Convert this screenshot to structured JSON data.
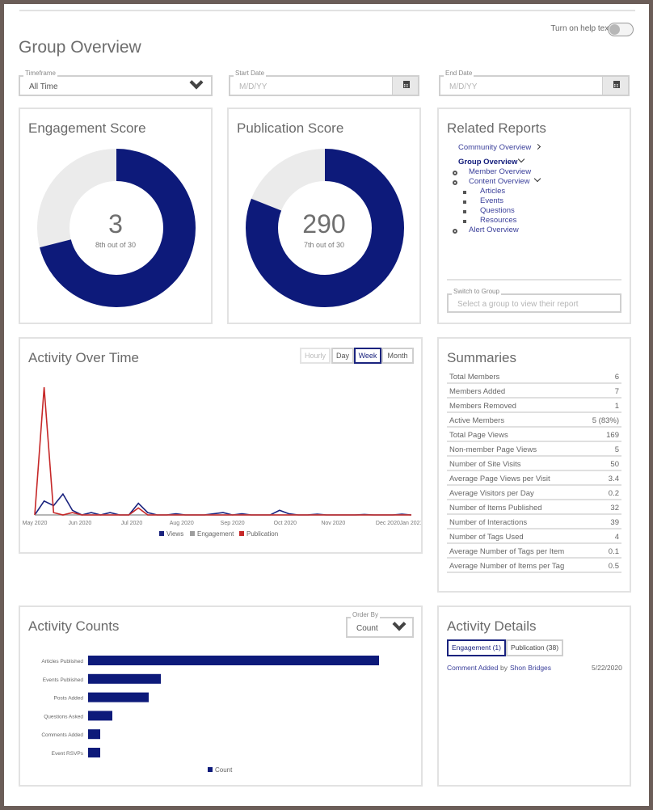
{
  "header": {
    "title": "Group Overview",
    "help_label": "Turn on help text"
  },
  "filters": {
    "timeframe": {
      "label": "Timeframe",
      "value": "All Time"
    },
    "start_date": {
      "label": "Start Date",
      "placeholder": "M/D/YY"
    },
    "end_date": {
      "label": "End Date",
      "placeholder": "M/D/YY"
    }
  },
  "engagement": {
    "title": "Engagement Score",
    "score": "3",
    "rank": "8th out of 30",
    "fill_fraction": 0.71
  },
  "publication": {
    "title": "Publication Score",
    "score": "290",
    "rank": "7th out of 30",
    "fill_fraction": 0.81
  },
  "related": {
    "title": "Related Reports",
    "community": "Community Overview",
    "group": "Group Overview",
    "member": "Member Overview",
    "content": "Content Overview",
    "articles": "Articles",
    "events": "Events",
    "questions": "Questions",
    "resources": "Resources",
    "alert": "Alert Overview",
    "switch_label": "Switch to Group",
    "switch_placeholder": "Select a group to view their report"
  },
  "activity": {
    "title": "Activity Over Time",
    "buttons": {
      "hourly": "Hourly",
      "day": "Day",
      "week": "Week",
      "month": "Month"
    },
    "selected": "Week",
    "legend": {
      "views": "Views",
      "engagement": "Engagement",
      "publication": "Publication"
    }
  },
  "chart_data": [
    {
      "type": "line",
      "x_ticks": [
        "May 2020",
        "Jun 2020",
        "Jul 2020",
        "Aug 2020",
        "Sep 2020",
        "Oct 2020",
        "Nov 2020",
        "Dec 2020",
        "Jan 2021"
      ],
      "x": [
        0,
        1,
        2,
        3,
        4,
        5,
        6,
        7,
        8,
        9,
        10,
        11,
        12,
        13,
        14,
        15,
        16,
        17,
        18,
        19,
        20,
        21,
        22,
        23,
        24,
        25,
        26,
        27,
        28,
        29,
        30,
        31,
        32,
        33,
        34,
        35,
        36,
        37,
        38,
        39,
        40
      ],
      "series": [
        {
          "name": "Views",
          "color": "#1a237e",
          "values": [
            0,
            6,
            4,
            9,
            2,
            0,
            1,
            0,
            1,
            0,
            0,
            5,
            1,
            0,
            0,
            0.5,
            0,
            0,
            0,
            0.5,
            1,
            0,
            0.5,
            0,
            0,
            0,
            2,
            0.5,
            0,
            0,
            0.3,
            0,
            0,
            0,
            0,
            0.2,
            0,
            0,
            0,
            0.3,
            0
          ]
        },
        {
          "name": "Engagement",
          "color": "#9e9e9e",
          "values": [
            0,
            0,
            0,
            0,
            0,
            0,
            0,
            0,
            0,
            0,
            0,
            0,
            0,
            0,
            0,
            0,
            0,
            0,
            0,
            0,
            0,
            0,
            0,
            0,
            0,
            0,
            0,
            0,
            0,
            0,
            0,
            0,
            0,
            0,
            0,
            0,
            0,
            0,
            0,
            0,
            0
          ]
        },
        {
          "name": "Publication",
          "color": "#c62828",
          "values": [
            0,
            55,
            1,
            0,
            1,
            0,
            0,
            0,
            0,
            0,
            0,
            3,
            0,
            0,
            0,
            0,
            0,
            0,
            0,
            0,
            0,
            0,
            0,
            0,
            0,
            0,
            0,
            0,
            0,
            0,
            0,
            0,
            0,
            0,
            0,
            0,
            0,
            0,
            0,
            0,
            0
          ]
        }
      ],
      "ylim": [
        0,
        55
      ]
    },
    {
      "type": "bar",
      "orientation": "horizontal",
      "categories": [
        "Articles Published",
        "Events Published",
        "Posts Added",
        "Questions Asked",
        "Comments Added",
        "Event RSVPs"
      ],
      "series": [
        {
          "name": "Count",
          "color": "#0d1a7a",
          "values": [
            24,
            6,
            5,
            2,
            1,
            1
          ]
        }
      ],
      "xlim": [
        0,
        24
      ]
    }
  ],
  "summaries": {
    "title": "Summaries",
    "rows": [
      {
        "k": "Total Members",
        "v": "6"
      },
      {
        "k": "Members Added",
        "v": "7"
      },
      {
        "k": "Members Removed",
        "v": "1"
      },
      {
        "k": "Active Members",
        "v": "5 (83%)"
      },
      {
        "k": "Total Page Views",
        "v": "169"
      },
      {
        "k": "Non-member Page Views",
        "v": "5"
      },
      {
        "k": "Number of Site Visits",
        "v": "50"
      },
      {
        "k": "Average Page Views per Visit",
        "v": "3.4"
      },
      {
        "k": "Average Visitors per Day",
        "v": "0.2"
      },
      {
        "k": "Number of Items Published",
        "v": "32"
      },
      {
        "k": "Number of Interactions",
        "v": "39"
      },
      {
        "k": "Number of Tags Used",
        "v": "4"
      },
      {
        "k": "Average Number of Tags per Item",
        "v": "0.1"
      },
      {
        "k": "Average Number of Items per Tag",
        "v": "0.5"
      }
    ]
  },
  "counts": {
    "title": "Activity Counts",
    "order_label": "Order By",
    "order_value": "Count"
  },
  "details": {
    "title": "Activity Details",
    "tab_engagement": "Engagement (1)",
    "tab_publication": "Publication (38)",
    "item_action": "Comment Added",
    "item_by": "by",
    "item_user": "Shon Bridges",
    "item_date": "5/22/2020"
  },
  "colors": {
    "primary": "#0d1a7a",
    "donut_bg": "#ebebeb",
    "red": "#c62828"
  }
}
